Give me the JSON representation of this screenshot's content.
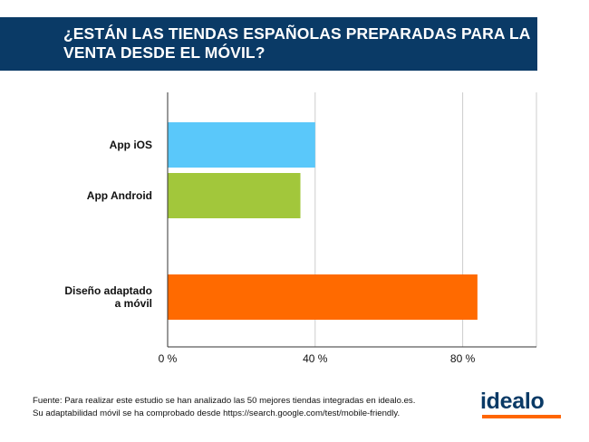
{
  "header": {
    "title": "¿ESTÁN LAS TIENDAS ESPAÑOLAS PREPARADAS PARA LA VENTA DESDE EL MÓVIL?"
  },
  "chart_data": {
    "type": "bar",
    "orientation": "horizontal",
    "categories": [
      "App iOS",
      "App Android",
      "Diseño adaptado a móvil"
    ],
    "category_lines": [
      [
        "App iOS"
      ],
      [
        "App Android"
      ],
      [
        "Diseño adaptado",
        "a móvil"
      ]
    ],
    "values": [
      40,
      36,
      84
    ],
    "colors": [
      "#5ac8fa",
      "#a2c73b",
      "#ff6a00"
    ],
    "xticks": [
      0,
      40,
      80
    ],
    "xtick_labels": [
      "0 %",
      "40 %",
      "80 %"
    ],
    "xlim": [
      0,
      100
    ],
    "grid": true
  },
  "footer": {
    "line1": "Fuente: Para realizar este estudio se han analizado las 50 mejores tiendas integradas en idealo.es.",
    "line2": "Su adaptabilidad móvil se ha comprobado desde https://search.google.com/test/mobile-friendly."
  },
  "logo": {
    "text": "idealo",
    "colors": {
      "text": "#0a3a66",
      "bar": "#ff6600"
    }
  }
}
